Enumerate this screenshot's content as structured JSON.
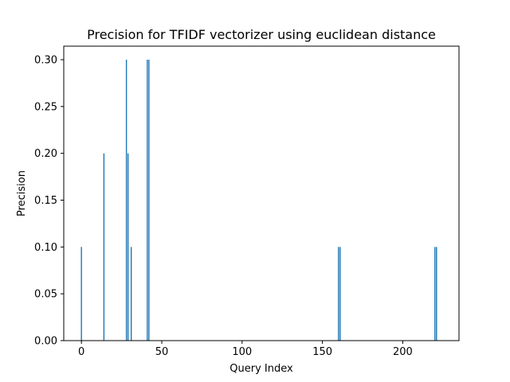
{
  "chart_data": {
    "type": "bar",
    "title": "Precision for TFIDF vectorizer using euclidean distance",
    "xlabel": "Query Index",
    "ylabel": "Precision",
    "xlim": [
      -11,
      235
    ],
    "ylim": [
      0.0,
      0.3
    ],
    "xticks": [
      0,
      50,
      100,
      150,
      200
    ],
    "xtick_labels": [
      "0",
      "50",
      "100",
      "150",
      "200"
    ],
    "yticks": [
      0.0,
      0.05,
      0.1,
      0.15,
      0.2,
      0.25,
      0.3
    ],
    "ytick_labels": [
      "0.00",
      "0.05",
      "0.10",
      "0.15",
      "0.20",
      "0.25",
      "0.30"
    ],
    "bar_color": "#1f77b4",
    "grid": false,
    "legend": "none",
    "x_domain": [
      0,
      221
    ],
    "x": [
      0,
      14,
      28,
      29,
      31,
      41,
      42,
      160,
      161,
      220,
      221
    ],
    "values": [
      0.1,
      0.2,
      0.3,
      0.2,
      0.1,
      0.3,
      0.3,
      0.1,
      0.1,
      0.1,
      0.1
    ],
    "note_zero_elsewhere": "all other query indices have precision 0.00"
  }
}
